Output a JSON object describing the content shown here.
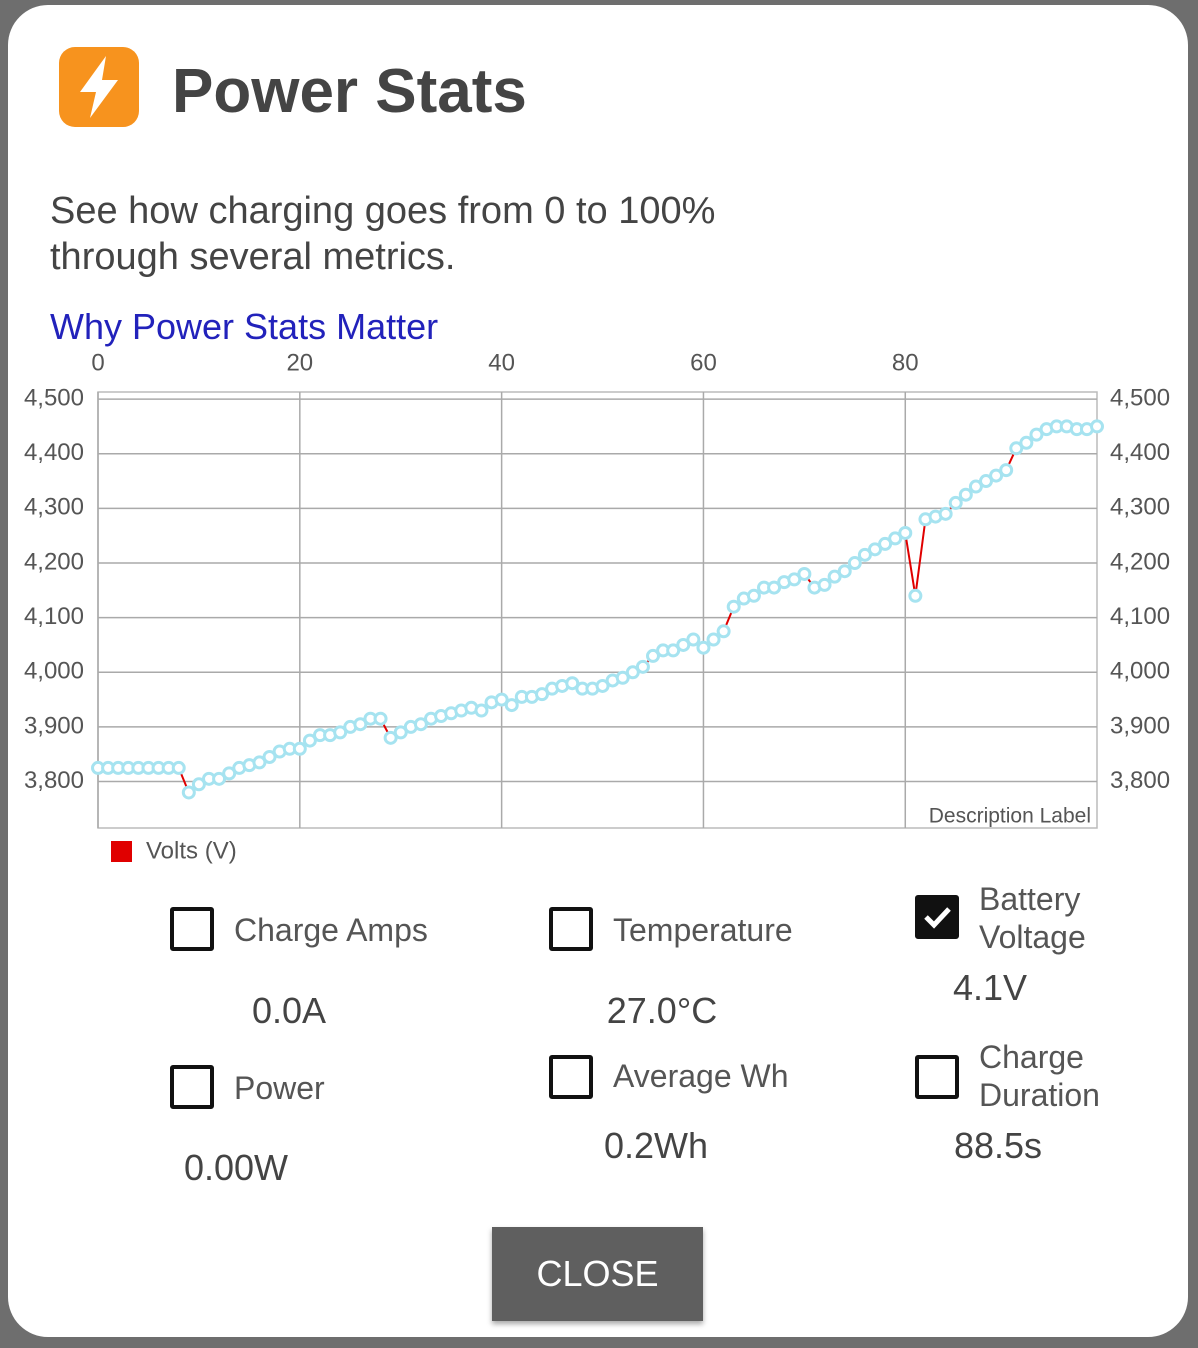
{
  "header": {
    "title": "Power Stats"
  },
  "description": "See how charging goes from 0 to 100% through several metrics.",
  "link": "Why Power Stats Matter",
  "chart_data": {
    "type": "line",
    "description_label": "Description Label",
    "x": [
      0,
      1,
      2,
      3,
      4,
      5,
      6,
      7,
      8,
      9,
      10,
      11,
      12,
      13,
      14,
      15,
      16,
      17,
      18,
      19,
      20,
      21,
      22,
      23,
      24,
      25,
      26,
      27,
      28,
      29,
      30,
      31,
      32,
      33,
      34,
      35,
      36,
      37,
      38,
      39,
      40,
      41,
      42,
      43,
      44,
      45,
      46,
      47,
      48,
      49,
      50,
      51,
      52,
      53,
      54,
      55,
      56,
      57,
      58,
      59,
      60,
      61,
      62,
      63,
      64,
      65,
      66,
      67,
      68,
      69,
      70,
      71,
      72,
      73,
      74,
      75,
      76,
      77,
      78,
      79,
      80,
      81,
      82,
      83,
      84,
      85,
      86,
      87,
      88,
      89,
      90,
      91,
      92,
      93,
      94,
      95,
      96,
      97,
      98,
      99
    ],
    "series": [
      {
        "name": "Volts (V)",
        "color": "#e00000",
        "marker_color": "#a6e3f0",
        "values": [
          3825,
          3825,
          3825,
          3825,
          3825,
          3825,
          3825,
          3825,
          3825,
          3780,
          3795,
          3805,
          3805,
          3815,
          3825,
          3830,
          3835,
          3845,
          3855,
          3860,
          3860,
          3875,
          3885,
          3885,
          3890,
          3900,
          3905,
          3915,
          3915,
          3880,
          3890,
          3900,
          3905,
          3915,
          3920,
          3925,
          3930,
          3935,
          3930,
          3945,
          3950,
          3940,
          3955,
          3955,
          3960,
          3970,
          3975,
          3980,
          3970,
          3970,
          3975,
          3985,
          3990,
          4000,
          4010,
          4030,
          4040,
          4040,
          4050,
          4060,
          4045,
          4060,
          4075,
          4120,
          4135,
          4140,
          4155,
          4155,
          4165,
          4170,
          4180,
          4155,
          4160,
          4175,
          4185,
          4200,
          4215,
          4225,
          4235,
          4245,
          4255,
          4140,
          4280,
          4285,
          4290,
          4310,
          4325,
          4340,
          4350,
          4360,
          4370,
          4410,
          4420,
          4435,
          4445,
          4450,
          4450,
          4445,
          4445,
          4450
        ]
      }
    ],
    "xlim": [
      0,
      99
    ],
    "xticks": [
      0,
      20,
      40,
      60,
      80
    ],
    "ylim": [
      3715,
      4513
    ],
    "yticks": [
      {
        "value": 3800,
        "label": "3,800"
      },
      {
        "value": 3900,
        "label": "3,900"
      },
      {
        "value": 4000,
        "label": "4,000"
      },
      {
        "value": 4100,
        "label": "4,100"
      },
      {
        "value": 4200,
        "label": "4,200"
      },
      {
        "value": 4300,
        "label": "4,300"
      },
      {
        "value": 4400,
        "label": "4,400"
      },
      {
        "value": 4500,
        "label": "4,500"
      }
    ],
    "grid": true
  },
  "metrics": [
    {
      "label": "Charge Amps",
      "value": "0.0A",
      "checked": false
    },
    {
      "label": "Temperature",
      "value": "27.0°C",
      "checked": false
    },
    {
      "label": "Battery Voltage",
      "value": "4.1V",
      "checked": true
    },
    {
      "label": "Power",
      "value": "0.00W",
      "checked": false
    },
    {
      "label": "Average Wh",
      "value": "0.2Wh",
      "checked": false
    },
    {
      "label": "Charge Duration",
      "value": "88.5s",
      "checked": false
    }
  ],
  "button": "CLOSE"
}
